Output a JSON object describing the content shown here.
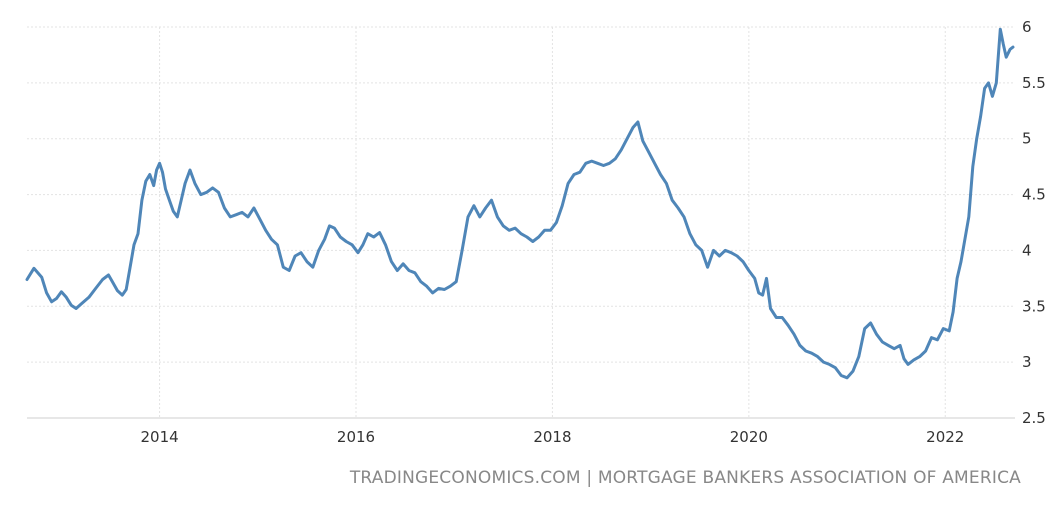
{
  "chart_data": {
    "type": "line",
    "title": "",
    "xlabel": "",
    "ylabel": "",
    "xlim": [
      2012.65,
      2022.71
    ],
    "ylim": [
      2.5,
      6
    ],
    "x_ticks": [
      2014,
      2016,
      2018,
      2020,
      2022
    ],
    "x_tick_labels": [
      "2014",
      "2016",
      "2018",
      "2020",
      "2022"
    ],
    "y_ticks": [
      2.5,
      3,
      3.5,
      4,
      4.5,
      5,
      5.5,
      6
    ],
    "y_tick_labels": [
      "2.5",
      "3",
      "3.5",
      "4",
      "4.5",
      "5",
      "5.5",
      "6"
    ],
    "grid": true,
    "colors": {
      "line": "#4f86b8",
      "grid": "#e3e3e3",
      "axis": "#cfcfcf"
    },
    "series": [
      {
        "values": [
          [
            2012.65,
            3.74
          ],
          [
            2012.72,
            3.84
          ],
          [
            2012.8,
            3.76
          ],
          [
            2012.85,
            3.62
          ],
          [
            2012.9,
            3.54
          ],
          [
            2012.95,
            3.57
          ],
          [
            2013.0,
            3.63
          ],
          [
            2013.05,
            3.58
          ],
          [
            2013.1,
            3.51
          ],
          [
            2013.15,
            3.48
          ],
          [
            2013.2,
            3.52
          ],
          [
            2013.28,
            3.58
          ],
          [
            2013.35,
            3.66
          ],
          [
            2013.42,
            3.74
          ],
          [
            2013.48,
            3.78
          ],
          [
            2013.52,
            3.72
          ],
          [
            2013.57,
            3.64
          ],
          [
            2013.62,
            3.6
          ],
          [
            2013.66,
            3.65
          ],
          [
            2013.7,
            3.85
          ],
          [
            2013.74,
            4.05
          ],
          [
            2013.78,
            4.15
          ],
          [
            2013.82,
            4.45
          ],
          [
            2013.86,
            4.62
          ],
          [
            2013.9,
            4.68
          ],
          [
            2013.94,
            4.58
          ],
          [
            2013.97,
            4.72
          ],
          [
            2014.0,
            4.78
          ],
          [
            2014.03,
            4.7
          ],
          [
            2014.06,
            4.55
          ],
          [
            2014.1,
            4.45
          ],
          [
            2014.14,
            4.35
          ],
          [
            2014.18,
            4.3
          ],
          [
            2014.22,
            4.45
          ],
          [
            2014.26,
            4.6
          ],
          [
            2014.31,
            4.72
          ],
          [
            2014.36,
            4.6
          ],
          [
            2014.42,
            4.5
          ],
          [
            2014.48,
            4.52
          ],
          [
            2014.54,
            4.56
          ],
          [
            2014.6,
            4.52
          ],
          [
            2014.66,
            4.38
          ],
          [
            2014.72,
            4.3
          ],
          [
            2014.78,
            4.32
          ],
          [
            2014.84,
            4.34
          ],
          [
            2014.9,
            4.3
          ],
          [
            2014.96,
            4.38
          ],
          [
            2015.02,
            4.28
          ],
          [
            2015.08,
            4.18
          ],
          [
            2015.14,
            4.1
          ],
          [
            2015.2,
            4.05
          ],
          [
            2015.26,
            3.85
          ],
          [
            2015.32,
            3.82
          ],
          [
            2015.38,
            3.95
          ],
          [
            2015.44,
            3.98
          ],
          [
            2015.5,
            3.9
          ],
          [
            2015.56,
            3.85
          ],
          [
            2015.62,
            4.0
          ],
          [
            2015.68,
            4.1
          ],
          [
            2015.73,
            4.22
          ],
          [
            2015.78,
            4.2
          ],
          [
            2015.84,
            4.12
          ],
          [
            2015.9,
            4.08
          ],
          [
            2015.96,
            4.05
          ],
          [
            2016.02,
            3.98
          ],
          [
            2016.07,
            4.05
          ],
          [
            2016.12,
            4.15
          ],
          [
            2016.18,
            4.12
          ],
          [
            2016.24,
            4.16
          ],
          [
            2016.3,
            4.05
          ],
          [
            2016.36,
            3.9
          ],
          [
            2016.42,
            3.82
          ],
          [
            2016.48,
            3.88
          ],
          [
            2016.54,
            3.82
          ],
          [
            2016.6,
            3.8
          ],
          [
            2016.66,
            3.72
          ],
          [
            2016.72,
            3.68
          ],
          [
            2016.78,
            3.62
          ],
          [
            2016.84,
            3.66
          ],
          [
            2016.9,
            3.65
          ],
          [
            2016.96,
            3.68
          ],
          [
            2017.02,
            3.72
          ],
          [
            2017.08,
            4.0
          ],
          [
            2017.14,
            4.3
          ],
          [
            2017.2,
            4.4
          ],
          [
            2017.26,
            4.3
          ],
          [
            2017.32,
            4.38
          ],
          [
            2017.38,
            4.45
          ],
          [
            2017.44,
            4.3
          ],
          [
            2017.5,
            4.22
          ],
          [
            2017.56,
            4.18
          ],
          [
            2017.62,
            4.2
          ],
          [
            2017.68,
            4.15
          ],
          [
            2017.74,
            4.12
          ],
          [
            2017.8,
            4.08
          ],
          [
            2017.86,
            4.12
          ],
          [
            2017.92,
            4.18
          ],
          [
            2017.98,
            4.18
          ],
          [
            2018.04,
            4.25
          ],
          [
            2018.1,
            4.4
          ],
          [
            2018.16,
            4.6
          ],
          [
            2018.22,
            4.68
          ],
          [
            2018.28,
            4.7
          ],
          [
            2018.34,
            4.78
          ],
          [
            2018.4,
            4.8
          ],
          [
            2018.46,
            4.78
          ],
          [
            2018.52,
            4.76
          ],
          [
            2018.58,
            4.78
          ],
          [
            2018.64,
            4.82
          ],
          [
            2018.7,
            4.9
          ],
          [
            2018.76,
            5.0
          ],
          [
            2018.82,
            5.1
          ],
          [
            2018.87,
            5.15
          ],
          [
            2018.92,
            4.98
          ],
          [
            2018.98,
            4.88
          ],
          [
            2019.04,
            4.78
          ],
          [
            2019.1,
            4.68
          ],
          [
            2019.16,
            4.6
          ],
          [
            2019.22,
            4.45
          ],
          [
            2019.28,
            4.38
          ],
          [
            2019.34,
            4.3
          ],
          [
            2019.4,
            4.15
          ],
          [
            2019.46,
            4.05
          ],
          [
            2019.52,
            4.0
          ],
          [
            2019.58,
            3.85
          ],
          [
            2019.64,
            4.0
          ],
          [
            2019.7,
            3.95
          ],
          [
            2019.76,
            4.0
          ],
          [
            2019.82,
            3.98
          ],
          [
            2019.88,
            3.95
          ],
          [
            2019.94,
            3.9
          ],
          [
            2020.0,
            3.82
          ],
          [
            2020.06,
            3.75
          ],
          [
            2020.1,
            3.62
          ],
          [
            2020.14,
            3.6
          ],
          [
            2020.18,
            3.75
          ],
          [
            2020.22,
            3.48
          ],
          [
            2020.28,
            3.4
          ],
          [
            2020.34,
            3.4
          ],
          [
            2020.4,
            3.33
          ],
          [
            2020.46,
            3.25
          ],
          [
            2020.52,
            3.15
          ],
          [
            2020.58,
            3.1
          ],
          [
            2020.64,
            3.08
          ],
          [
            2020.7,
            3.05
          ],
          [
            2020.76,
            3.0
          ],
          [
            2020.82,
            2.98
          ],
          [
            2020.88,
            2.95
          ],
          [
            2020.94,
            2.88
          ],
          [
            2021.0,
            2.86
          ],
          [
            2021.06,
            2.92
          ],
          [
            2021.12,
            3.05
          ],
          [
            2021.18,
            3.3
          ],
          [
            2021.24,
            3.35
          ],
          [
            2021.3,
            3.25
          ],
          [
            2021.36,
            3.18
          ],
          [
            2021.42,
            3.15
          ],
          [
            2021.48,
            3.12
          ],
          [
            2021.54,
            3.15
          ],
          [
            2021.58,
            3.03
          ],
          [
            2021.62,
            2.98
          ],
          [
            2021.68,
            3.02
          ],
          [
            2021.74,
            3.05
          ],
          [
            2021.8,
            3.1
          ],
          [
            2021.86,
            3.22
          ],
          [
            2021.92,
            3.2
          ],
          [
            2021.98,
            3.3
          ],
          [
            2022.04,
            3.28
          ],
          [
            2022.08,
            3.45
          ],
          [
            2022.12,
            3.75
          ],
          [
            2022.16,
            3.9
          ],
          [
            2022.2,
            4.1
          ],
          [
            2022.24,
            4.3
          ],
          [
            2022.28,
            4.75
          ],
          [
            2022.32,
            5.0
          ],
          [
            2022.36,
            5.2
          ],
          [
            2022.4,
            5.45
          ],
          [
            2022.44,
            5.5
          ],
          [
            2022.48,
            5.38
          ],
          [
            2022.52,
            5.5
          ],
          [
            2022.56,
            5.98
          ],
          [
            2022.59,
            5.85
          ],
          [
            2022.62,
            5.73
          ],
          [
            2022.66,
            5.8
          ],
          [
            2022.69,
            5.82
          ]
        ]
      }
    ]
  },
  "footer": {
    "source": "TRADINGECONOMICS.COM | MORTGAGE BANKERS ASSOCIATION OF AMERICA"
  }
}
